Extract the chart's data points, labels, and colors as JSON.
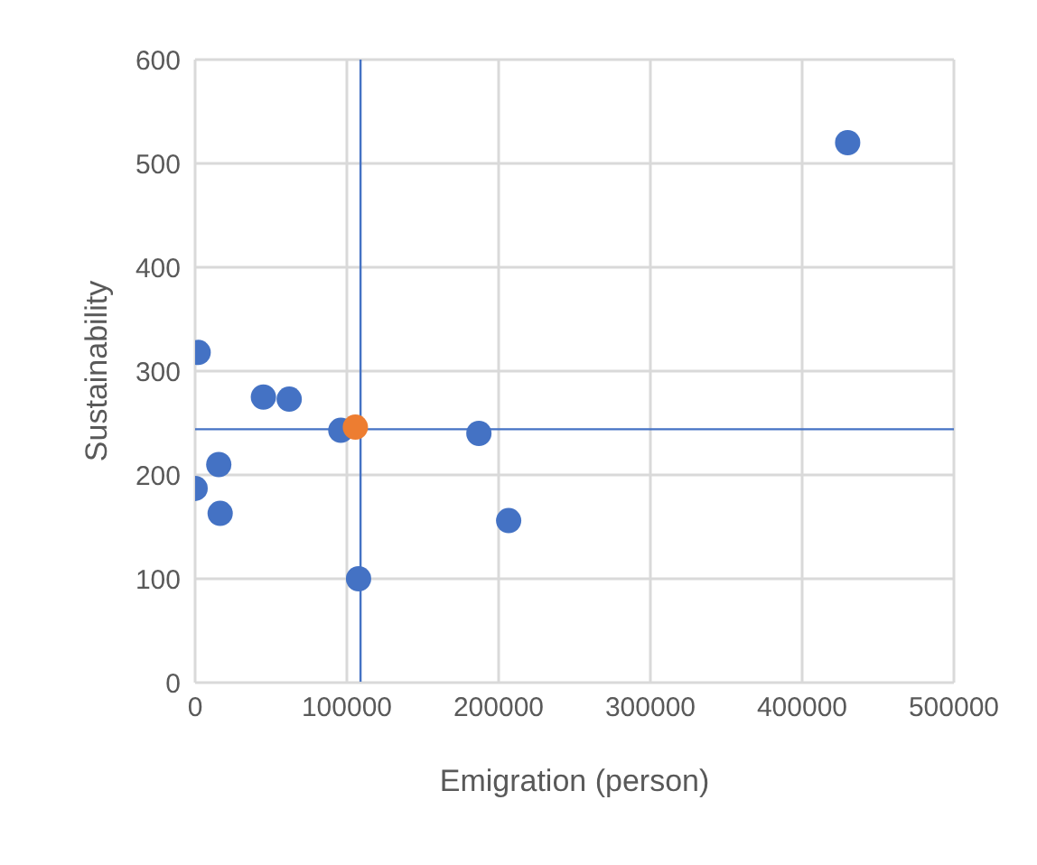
{
  "chart_data": {
    "type": "scatter",
    "xlabel": "Emigration (person)",
    "ylabel": "Sustainability",
    "series": [
      {
        "color": "#4472c4",
        "x": [
          2000,
          0,
          15600,
          16500,
          45000,
          62000,
          96000,
          107700,
          187000,
          206600,
          430000
        ],
        "values": [
          318,
          187,
          210,
          163,
          275,
          273,
          243,
          100,
          240,
          156,
          520
        ]
      },
      {
        "color": "#ed7d31",
        "x": [
          105600
        ],
        "values": [
          246
        ]
      }
    ],
    "xlim": [
      0,
      500000
    ],
    "xticks": [
      0,
      100000,
      200000,
      300000,
      400000,
      500000
    ],
    "ylim": [
      0,
      600
    ],
    "yticks": [
      0,
      100,
      200,
      300,
      400,
      500,
      600
    ],
    "grid": true,
    "marker": "circle",
    "ref_lines": [
      {
        "axis": "x",
        "value": 109000,
        "color": "#4472c4"
      },
      {
        "axis": "y",
        "value": 244,
        "color": "#4472c4"
      }
    ]
  }
}
